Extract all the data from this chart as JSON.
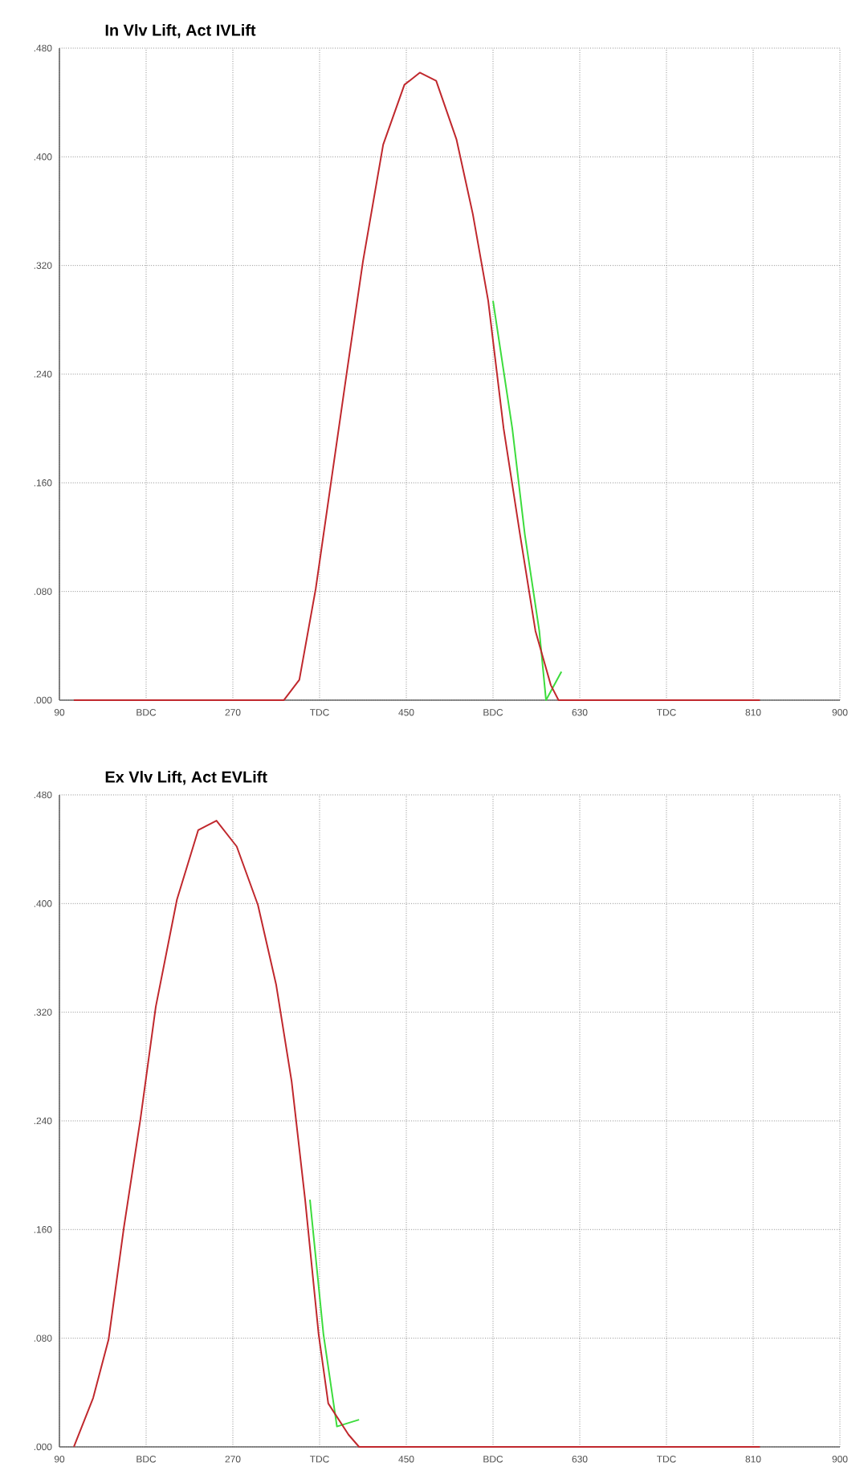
{
  "chart_data": [
    {
      "type": "line",
      "title": "In Vlv Lift, Act IVLift",
      "xlim": [
        90,
        900
      ],
      "ylim": [
        0,
        0.48
      ],
      "grid": true,
      "xticks": [
        90,
        {
          "value": 180,
          "label": "BDC"
        },
        270,
        {
          "value": 360,
          "label": "TDC"
        },
        450,
        {
          "value": 540,
          "label": "BDC"
        },
        630,
        {
          "value": 720,
          "label": "TDC"
        },
        810,
        900
      ],
      "yticks": [
        {
          "value": 0,
          "label": ".000"
        },
        {
          "value": 0.08,
          "label": ".080"
        },
        {
          "value": 0.16,
          "label": ".160"
        },
        {
          "value": 0.24,
          "label": ".240"
        },
        {
          "value": 0.32,
          "label": ".320"
        },
        {
          "value": 0.4,
          "label": ".400"
        },
        {
          "value": 0.48,
          "label": ".480"
        }
      ],
      "series": [
        {
          "color": "#3ddc3d",
          "x": [
            540,
            560,
            573,
            588,
            595,
            611
          ],
          "values": [
            0.294,
            0.2,
            0.122,
            0.051,
            0,
            0.021
          ]
        },
        {
          "color": "#c0282d",
          "x": [
            105,
            323,
            339,
            356,
            372,
            388,
            405,
            426,
            448,
            464,
            481,
            502,
            519,
            535,
            551,
            568,
            584,
            600,
            608,
            817
          ],
          "values": [
            0,
            0,
            0.015,
            0.082,
            0.161,
            0.24,
            0.323,
            0.409,
            0.453,
            0.462,
            0.456,
            0.413,
            0.358,
            0.294,
            0.2,
            0.122,
            0.051,
            0.011,
            0,
            0
          ]
        }
      ]
    },
    {
      "type": "line",
      "title": "Ex Vlv Lift, Act EVLift",
      "xlim": [
        90,
        900
      ],
      "ylim": [
        0,
        0.48
      ],
      "grid": true,
      "xticks": [
        90,
        {
          "value": 180,
          "label": "BDC"
        },
        270,
        {
          "value": 360,
          "label": "TDC"
        },
        450,
        {
          "value": 540,
          "label": "BDC"
        },
        630,
        {
          "value": 720,
          "label": "TDC"
        },
        810,
        900
      ],
      "yticks": [
        {
          "value": 0,
          "label": ".000"
        },
        {
          "value": 0.08,
          "label": ".080"
        },
        {
          "value": 0.16,
          "label": ".160"
        },
        {
          "value": 0.24,
          "label": ".240"
        },
        {
          "value": 0.32,
          "label": ".320"
        },
        {
          "value": 0.4,
          "label": ".400"
        },
        {
          "value": 0.48,
          "label": ".480"
        }
      ],
      "series": [
        {
          "color": "#3ddc3d",
          "x": [
            350,
            364,
            378,
            401
          ],
          "values": [
            0.182,
            0.083,
            0.015,
            0.02
          ]
        },
        {
          "color": "#c0282d",
          "x": [
            105,
            125,
            141,
            157,
            174,
            190,
            212,
            234,
            253,
            274,
            296,
            315,
            331,
            345,
            359,
            369,
            390,
            401,
            817
          ],
          "values": [
            0,
            0.036,
            0.079,
            0.162,
            0.241,
            0.324,
            0.403,
            0.454,
            0.461,
            0.442,
            0.399,
            0.34,
            0.269,
            0.182,
            0.083,
            0.032,
            0.009,
            0,
            0
          ]
        }
      ]
    }
  ]
}
